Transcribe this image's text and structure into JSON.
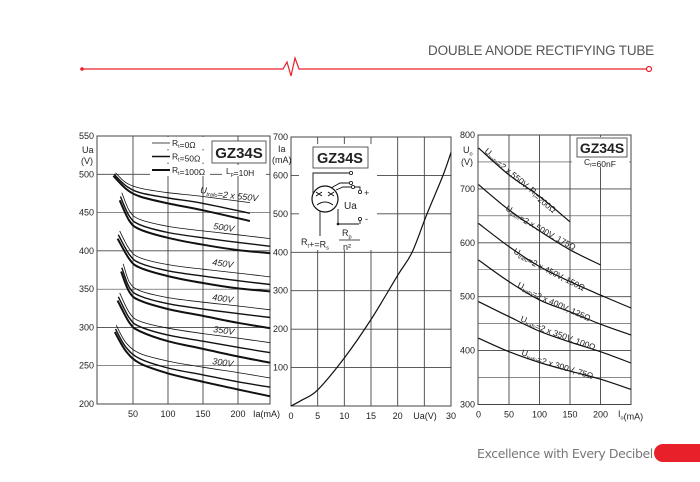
{
  "header": {
    "title": "DOUBLE ANODE RECTIFYING TUBE"
  },
  "footer": {
    "slogan": "Excellence with Every Decibel"
  },
  "colors": {
    "accent": "#e8202a",
    "title_text": "#555555",
    "curve": "#111111",
    "grid": "#444444"
  },
  "icons": {
    "divider": "red-line-with-pulse-squiggle",
    "tube_symbol": "double-anode-rectifier-tube-symbol"
  },
  "chart_data": [
    {
      "type": "line",
      "badge": "GZ34S",
      "note": {
        "main": "L",
        "sub": "p",
        "rest": "=10H"
      },
      "ylabel": [
        "Ua",
        "(V)"
      ],
      "xlabel": "Ia(mA)",
      "xlim": [
        0,
        246
      ],
      "ylim": [
        200,
        550
      ],
      "x_ticks": [
        "50",
        "100",
        "150",
        "200"
      ],
      "x_tick_values": [
        50,
        100,
        150,
        200
      ],
      "y_ticks": [
        "550",
        "500",
        "450",
        "400",
        "350",
        "300",
        "250",
        "200"
      ],
      "y_tick_values": [
        550,
        500,
        450,
        400,
        350,
        300,
        250,
        200
      ],
      "grid": true,
      "legend": [
        {
          "main": "R",
          "sub": "t",
          "rest": "=0Ω"
        },
        {
          "main": "R",
          "sub": "t",
          "rest": "=50Ω"
        },
        {
          "main": "R",
          "sub": "t",
          "rest": "=100Ω"
        }
      ],
      "legend_placement": "top-center",
      "groups": [
        {
          "label": {
            "main": "U",
            "sub": "trafo",
            "rest": "=2 x 550V"
          },
          "curves": [
            [
              [
                25,
                502
              ],
              [
                40,
                489
              ],
              [
                60,
                482
              ],
              [
                100,
                476
              ],
              [
                150,
                471
              ],
              [
                217,
                463
              ]
            ],
            [
              [
                23,
                500
              ],
              [
                40,
                485
              ],
              [
                60,
                476
              ],
              [
                100,
                469
              ],
              [
                150,
                462
              ],
              [
                217,
                449
              ]
            ],
            [
              [
                22,
                498
              ],
              [
                40,
                481
              ],
              [
                60,
                471
              ],
              [
                100,
                462
              ],
              [
                150,
                453
              ],
              [
                217,
                439
              ]
            ]
          ]
        },
        {
          "label": {
            "main": "",
            "sub": "",
            "rest": "500V"
          },
          "curves": [
            [
              [
                34,
                476
              ],
              [
                45,
                452
              ],
              [
                60,
                441
              ],
              [
                100,
                432
              ],
              [
                150,
                426
              ],
              [
                200,
                421
              ],
              [
                246,
                416
              ]
            ],
            [
              [
                32,
                471
              ],
              [
                45,
                445
              ],
              [
                60,
                434
              ],
              [
                100,
                424
              ],
              [
                150,
                417
              ],
              [
                200,
                411
              ],
              [
                246,
                406
              ]
            ],
            [
              [
                31,
                466
              ],
              [
                45,
                439
              ],
              [
                60,
                428
              ],
              [
                100,
                417
              ],
              [
                150,
                408
              ],
              [
                200,
                401
              ],
              [
                246,
                397
              ]
            ]
          ]
        },
        {
          "label": {
            "main": "",
            "sub": "",
            "rest": "450V"
          },
          "curves": [
            [
              [
                31,
                426
              ],
              [
                45,
                402
              ],
              [
                60,
                391
              ],
              [
                100,
                382
              ],
              [
                150,
                376
              ],
              [
                200,
                371
              ],
              [
                246,
                366
              ]
            ],
            [
              [
                29,
                421
              ],
              [
                45,
                395
              ],
              [
                60,
                384
              ],
              [
                100,
                374
              ],
              [
                150,
                367
              ],
              [
                200,
                361
              ],
              [
                246,
                356
              ]
            ],
            [
              [
                28,
                416
              ],
              [
                45,
                389
              ],
              [
                60,
                378
              ],
              [
                100,
                367
              ],
              [
                150,
                358
              ],
              [
                200,
                351
              ],
              [
                246,
                347
              ]
            ]
          ]
        },
        {
          "label": {
            "main": "",
            "sub": "",
            "rest": "400V"
          },
          "curves": [
            [
              [
                36,
                383
              ],
              [
                45,
                359
              ],
              [
                60,
                348
              ],
              [
                100,
                339
              ],
              [
                150,
                333
              ],
              [
                200,
                328
              ],
              [
                246,
                323
              ]
            ],
            [
              [
                34,
                378
              ],
              [
                45,
                352
              ],
              [
                60,
                341
              ],
              [
                100,
                331
              ],
              [
                150,
                324
              ],
              [
                200,
                318
              ],
              [
                246,
                313
              ]
            ],
            [
              [
                33,
                373
              ],
              [
                45,
                346
              ],
              [
                60,
                335
              ],
              [
                100,
                324
              ],
              [
                150,
                315
              ],
              [
                200,
                306
              ],
              [
                246,
                299
              ]
            ]
          ]
        },
        {
          "label": {
            "main": "",
            "sub": "",
            "rest": "350V"
          },
          "curves": [
            [
              [
                31,
                345
              ],
              [
                45,
                319
              ],
              [
                60,
                308
              ],
              [
                100,
                299
              ],
              [
                150,
                292
              ],
              [
                200,
                286
              ],
              [
                246,
                280
              ]
            ],
            [
              [
                29,
                340
              ],
              [
                45,
                312
              ],
              [
                60,
                301
              ],
              [
                100,
                290
              ],
              [
                150,
                282
              ],
              [
                200,
                274
              ],
              [
                246,
                267
              ]
            ],
            [
              [
                28,
                335
              ],
              [
                45,
                306
              ],
              [
                60,
                295
              ],
              [
                100,
                282
              ],
              [
                150,
                272
              ],
              [
                200,
                262
              ],
              [
                246,
                254
              ]
            ]
          ]
        },
        {
          "label": {
            "main": "",
            "sub": "",
            "rest": "300V"
          },
          "curves": [
            [
              [
                26,
                303
              ],
              [
                40,
                280
              ],
              [
                60,
                266
              ],
              [
                100,
                256
              ],
              [
                150,
                248
              ],
              [
                200,
                241
              ],
              [
                246,
                234
              ]
            ],
            [
              [
                25,
                298
              ],
              [
                40,
                274
              ],
              [
                60,
                259
              ],
              [
                100,
                247
              ],
              [
                150,
                238
              ],
              [
                200,
                229
              ],
              [
                246,
                222
              ]
            ],
            [
              [
                24,
                294
              ],
              [
                40,
                269
              ],
              [
                60,
                253
              ],
              [
                100,
                240
              ],
              [
                150,
                229
              ],
              [
                200,
                219
              ],
              [
                246,
                210
              ]
            ]
          ]
        }
      ]
    },
    {
      "type": "line",
      "badge": "GZ34S",
      "ylabel": [
        "Ia",
        "(mA)"
      ],
      "xlabel": "Ua(V)",
      "xlim": [
        0,
        30
      ],
      "ylim": [
        0,
        700
      ],
      "x_ticks": [
        "0",
        "5",
        "10",
        "15",
        "20",
        "30"
      ],
      "x_tick_values": [
        0,
        5,
        10,
        15,
        20,
        30
      ],
      "y_ticks": [
        "700",
        "600",
        "500",
        "400",
        "300",
        "200",
        "100"
      ],
      "y_tick_values": [
        700,
        600,
        500,
        400,
        300,
        200,
        100
      ],
      "grid": true,
      "circuit": {
        "ua": "Ua",
        "plus": "+",
        "minus": "-",
        "formula_left": {
          "main": "R",
          "sub": "t",
          "mid": "=R",
          "sub2": "s",
          "rest": "+"
        },
        "numerator": {
          "main": "R",
          "sub": "p"
        },
        "denominator": "n²"
      },
      "series": [
        {
          "points": [
            [
              0,
              0
            ],
            [
              2,
              15
            ],
            [
              5,
              42
            ],
            [
              10,
              125
            ],
            [
              15,
              225
            ],
            [
              20,
              340
            ],
            [
              22.7,
              400
            ],
            [
              25.5,
              500
            ],
            [
              28.5,
              600
            ],
            [
              30,
              660
            ]
          ]
        }
      ]
    },
    {
      "type": "line",
      "badge": "GZ34S",
      "note": {
        "main": "C",
        "sub": "f",
        "rest": "=60nF"
      },
      "ylabel": [
        "Uo",
        "(V)"
      ],
      "ylabel_parts": {
        "main": "U",
        "sub": "o"
      },
      "xlabel": {
        "main": "I",
        "sub": "o",
        "rest": "(mA)"
      },
      "xlim": [
        0,
        250
      ],
      "ylim": [
        300,
        800
      ],
      "x_ticks": [
        "0",
        "50",
        "100",
        "150",
        "200"
      ],
      "x_tick_values": [
        0,
        50,
        100,
        150,
        200
      ],
      "y_ticks": [
        "800",
        "700",
        "600",
        "500",
        "400",
        "300"
      ],
      "y_tick_values": [
        800,
        700,
        600,
        500,
        400,
        300
      ],
      "grid": true,
      "series": [
        {
          "label": {
            "main": "U",
            "sub": "trafo",
            "rest": "=2 x 550V, R",
            "sub2": "t",
            "rest2": "=200Ω"
          },
          "points": [
            [
              0,
              776
            ],
            [
              50,
              726
            ],
            [
              100,
              686
            ],
            [
              150,
              639
            ]
          ]
        },
        {
          "label": {
            "main": "U",
            "sub": "trafo",
            "rest": "=2 x 500V, 175Ω"
          },
          "points": [
            [
              0,
              708
            ],
            [
              50,
              661
            ],
            [
              100,
              622
            ],
            [
              150,
              587
            ],
            [
              200,
              559
            ]
          ]
        },
        {
          "label": {
            "main": "U",
            "sub": "trafo",
            "rest": "=2 x 450V, 150Ω"
          },
          "points": [
            [
              0,
              636
            ],
            [
              50,
              593
            ],
            [
              100,
              556
            ],
            [
              150,
              528
            ],
            [
              200,
              503
            ],
            [
              250,
              479
            ]
          ]
        },
        {
          "label": {
            "main": "U",
            "sub": "trafo",
            "rest": "=2 x 400V, 125Ω"
          },
          "points": [
            [
              0,
              568
            ],
            [
              50,
              528
            ],
            [
              100,
              494
            ],
            [
              150,
              472
            ],
            [
              200,
              449
            ],
            [
              250,
              429
            ]
          ]
        },
        {
          "label": {
            "main": "U",
            "sub": "trafo",
            "rest": "=2 x 350V, 100Ω"
          },
          "points": [
            [
              0,
              491
            ],
            [
              50,
              463
            ],
            [
              100,
              436
            ],
            [
              150,
              416
            ],
            [
              200,
              398
            ],
            [
              250,
              377
            ]
          ]
        },
        {
          "label": {
            "main": "U",
            "sub": "trafo",
            "rest": "=2 x 300V, 75Ω"
          },
          "points": [
            [
              0,
              423
            ],
            [
              50,
              398
            ],
            [
              100,
              378
            ],
            [
              150,
              362
            ],
            [
              200,
              347
            ],
            [
              250,
              328
            ]
          ]
        }
      ]
    }
  ]
}
